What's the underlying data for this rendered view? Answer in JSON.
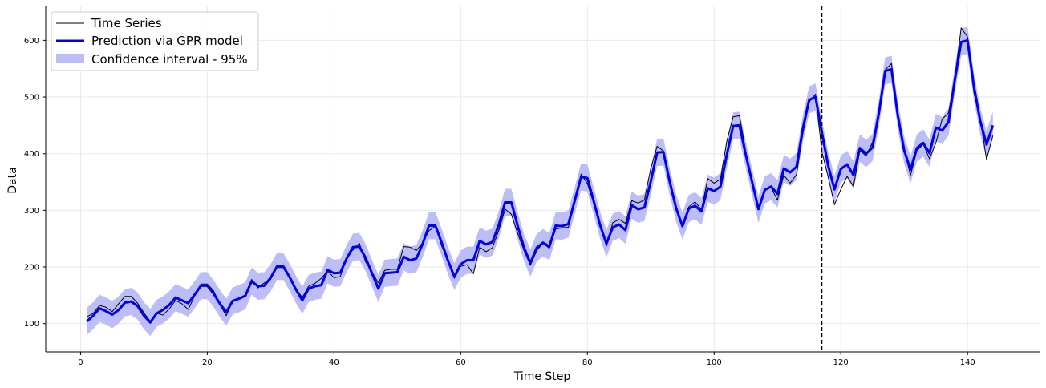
{
  "chart_data": {
    "type": "line",
    "title": "",
    "xlabel": "Time Step",
    "ylabel": "Data",
    "xlim": [
      -5.5,
      151.5
    ],
    "ylim": [
      50,
      660
    ],
    "x_ticks": [
      0,
      20,
      40,
      60,
      80,
      100,
      120,
      140
    ],
    "y_ticks": [
      100,
      200,
      300,
      400,
      500,
      600
    ],
    "grid": true,
    "legend_position": "top-left",
    "vline": {
      "x": 117,
      "style": "dashed",
      "color": "#000000"
    },
    "colors": {
      "series": "#000000",
      "prediction": "#0000ee",
      "band": "#bdbdf7",
      "grid": "#e9e9e9"
    },
    "legend": [
      "Time Series",
      "Prediction via GPR model",
      "Confidence interval - 95%"
    ],
    "series": [
      {
        "name": "Time Series",
        "x_start": 1,
        "values": [
          112,
          118,
          132,
          129,
          121,
          135,
          148,
          148,
          136,
          119,
          104,
          118,
          115,
          126,
          141,
          135,
          125,
          149,
          170,
          170,
          158,
          133,
          114,
          140,
          145,
          150,
          178,
          163,
          172,
          178,
          199,
          199,
          184,
          162,
          146,
          166,
          171,
          180,
          193,
          181,
          183,
          218,
          230,
          242,
          209,
          191,
          172,
          194,
          196,
          196,
          236,
          235,
          229,
          243,
          264,
          272,
          237,
          211,
          180,
          201,
          204,
          188,
          235,
          227,
          234,
          264,
          302,
          293,
          259,
          229,
          203,
          229,
          242,
          233,
          267,
          269,
          270,
          315,
          364,
          347,
          312,
          274,
          237,
          278,
          284,
          277,
          317,
          313,
          318,
          374,
          413,
          405,
          355,
          306,
          271,
          306,
          315,
          301,
          356,
          348,
          355,
          422,
          465,
          467,
          404,
          347,
          305,
          336,
          340,
          318,
          362,
          348,
          363,
          435,
          491,
          505,
          404,
          359,
          310,
          337,
          360,
          342,
          406,
          396,
          420,
          472,
          548,
          559,
          463,
          407,
          362,
          405,
          417,
          391,
          419,
          461,
          472,
          535,
          622,
          606,
          508,
          461,
          390,
          432
        ]
      },
      {
        "name": "Prediction via GPR model",
        "x_start": 1,
        "values": [
          104,
          114,
          127,
          122,
          116,
          124,
          137,
          139,
          131,
          114,
          102,
          118,
          124,
          133,
          146,
          141,
          136,
          151,
          167,
          167,
          153,
          135,
          120,
          140,
          144,
          149,
          175,
          166,
          167,
          181,
          201,
          201,
          182,
          160,
          141,
          162,
          166,
          168,
          195,
          189,
          190,
          215,
          235,
          236,
          216,
          189,
          162,
          189,
          190,
          191,
          218,
          212,
          215,
          241,
          273,
          273,
          243,
          211,
          183,
          205,
          212,
          212,
          246,
          240,
          244,
          274,
          314,
          314,
          272,
          234,
          207,
          234,
          243,
          236,
          273,
          272,
          276,
          317,
          359,
          357,
          316,
          274,
          241,
          270,
          275,
          265,
          309,
          302,
          305,
          351,
          402,
          403,
          350,
          304,
          272,
          303,
          308,
          298,
          339,
          334,
          342,
          398,
          449,
          450,
          398,
          350,
          302,
          336,
          342,
          329,
          374,
          367,
          377,
          444,
          495,
          500,
          438,
          379,
          337,
          373,
          381,
          362,
          410,
          400,
          411,
          471,
          546,
          549,
          467,
          406,
          372,
          410,
          419,
          401,
          446,
          441,
          456,
          531,
          597,
          600,
          519,
          458,
          416,
          450
        ]
      }
    ],
    "confidence_interval": {
      "name": "Confidence interval - 95%",
      "x_start": 1,
      "half_width": 24
    }
  }
}
